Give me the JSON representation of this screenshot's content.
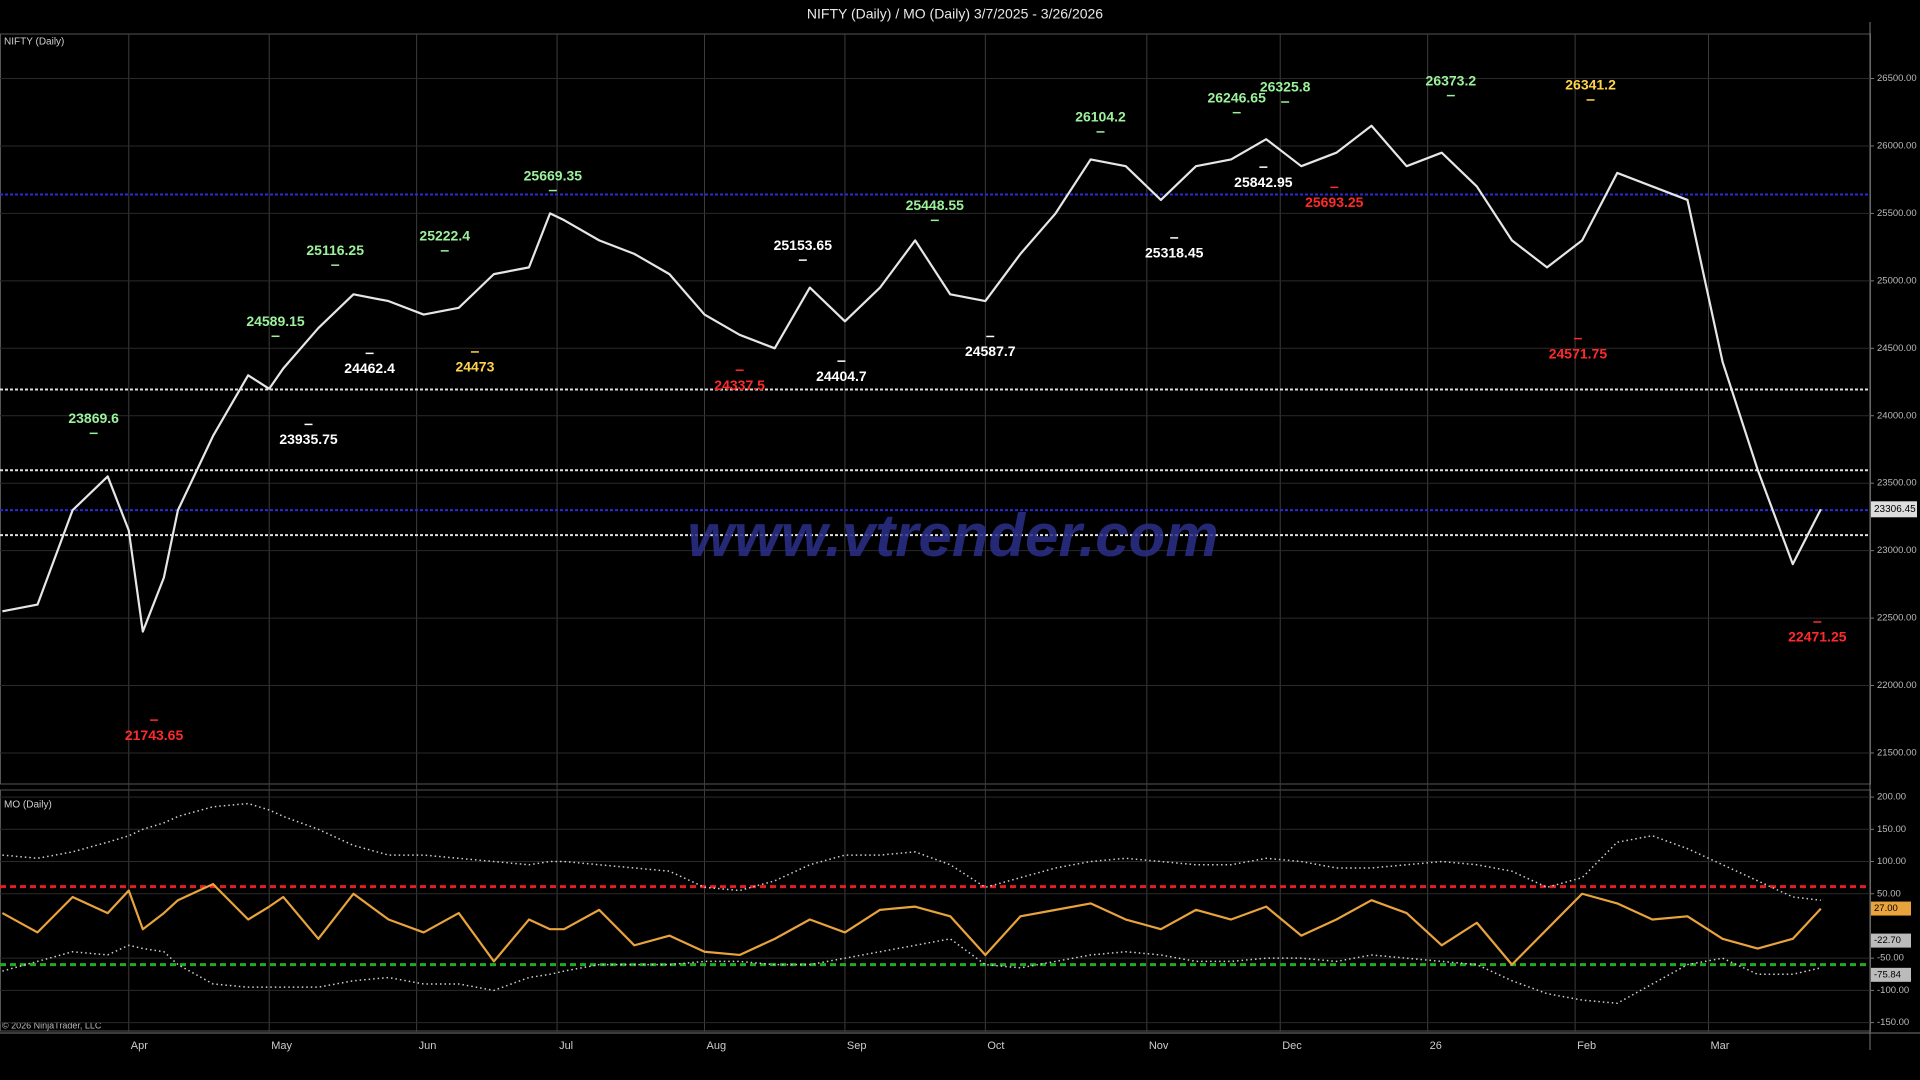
{
  "chart_data": [
    {
      "type": "line",
      "title": "NIFTY (Daily) / MO (Daily)  3/7/2025 - 3/26/2026",
      "watermark": "www.vtrender.com",
      "x": [
        0,
        5,
        10,
        15,
        18,
        20,
        23,
        25,
        30,
        35,
        38,
        40,
        45,
        50,
        55,
        60,
        65,
        70,
        75,
        78,
        80,
        85,
        90,
        95,
        100,
        105,
        110,
        115,
        120,
        125,
        130,
        135,
        140,
        145,
        150,
        155,
        160,
        165,
        170,
        175,
        180,
        185,
        190,
        195,
        200,
        205,
        210,
        215,
        220,
        225,
        230,
        235,
        240,
        245,
        250,
        255,
        259
      ],
      "xlim": [
        0,
        266
      ],
      "xticks": [
        {
          "value": 18,
          "label": "Apr"
        },
        {
          "value": 38,
          "label": "May"
        },
        {
          "value": 59,
          "label": "Jun"
        },
        {
          "value": 79,
          "label": "Jul"
        },
        {
          "value": 100,
          "label": "Aug"
        },
        {
          "value": 120,
          "label": "Sep"
        },
        {
          "value": 140,
          "label": "Oct"
        },
        {
          "value": 163,
          "label": "Nov"
        },
        {
          "value": 182,
          "label": "Dec"
        },
        {
          "value": 203,
          "label": "26"
        },
        {
          "value": 224,
          "label": "Feb"
        },
        {
          "value": 243,
          "label": "Mar"
        }
      ],
      "series": [
        {
          "name": "NIFTY (Daily)",
          "color": "#e6e6e6",
          "values": [
            22550,
            22600,
            23300,
            23550,
            23150,
            22400,
            22800,
            23300,
            23850,
            24300,
            24200,
            24350,
            24650,
            24900,
            24850,
            24750,
            24800,
            25050,
            25100,
            25500,
            25450,
            25300,
            25200,
            25050,
            24750,
            24600,
            24500,
            24950,
            24700,
            24950,
            25300,
            24900,
            24850,
            25200,
            25500,
            25900,
            25850,
            25600,
            25850,
            25900,
            26050,
            25850,
            25950,
            26150,
            25850,
            25950,
            25700,
            25300,
            25100,
            25300,
            25800,
            25700,
            25600,
            24400,
            23600,
            22900,
            23306.45
          ]
        }
      ],
      "ylim": [
        21270,
        26830
      ],
      "yticks": [
        {
          "value": 21500,
          "label": "21500.00"
        },
        {
          "value": 22000,
          "label": "22000.00"
        },
        {
          "value": 22500,
          "label": "22500.00"
        },
        {
          "value": 23000,
          "label": "23000.00"
        },
        {
          "value": 23500,
          "label": "23500.00"
        },
        {
          "value": 24000,
          "label": "24000.00"
        },
        {
          "value": 24500,
          "label": "24500.00"
        },
        {
          "value": 25000,
          "label": "25000.00"
        },
        {
          "value": 25500,
          "label": "25500.00"
        },
        {
          "value": 26000,
          "label": "26000.00"
        },
        {
          "value": 26500,
          "label": "26500.00"
        }
      ],
      "grid": true,
      "last_value": 23306.45,
      "levels": [
        {
          "value": 25640,
          "color": "#2a2ad8"
        },
        {
          "value": 23300,
          "color": "#2a2ad8"
        },
        {
          "value": 24195,
          "color": "#dddddd"
        },
        {
          "value": 23596,
          "color": "#dddddd"
        },
        {
          "value": 23115,
          "color": "#dddddd"
        }
      ],
      "annotations": [
        {
          "value": 23869.6,
          "x": 13,
          "color": "#9cf29c",
          "position": "above"
        },
        {
          "value": 21743.65,
          "x": 21.6,
          "color": "#ff2a2a",
          "position": "below"
        },
        {
          "value": 24589.15,
          "x": 38.9,
          "color": "#9cf29c",
          "position": "above"
        },
        {
          "value": 23935.75,
          "x": 43.6,
          "color": "#ffffff",
          "position": "below"
        },
        {
          "value": 25116.25,
          "x": 47.4,
          "color": "#9cf29c",
          "position": "above"
        },
        {
          "value": 24462.4,
          "x": 52.3,
          "color": "#ffffff",
          "position": "below"
        },
        {
          "value": 25222.4,
          "x": 63,
          "color": "#9cf29c",
          "position": "above"
        },
        {
          "value": 24473,
          "x": 67.3,
          "color": "#ffd54a",
          "position": "below"
        },
        {
          "value": 25669.35,
          "x": 78.4,
          "color": "#9cf29c",
          "position": "above"
        },
        {
          "value": 24337.5,
          "x": 105,
          "color": "#ff2a2a",
          "position": "below"
        },
        {
          "value": 25153.65,
          "x": 114,
          "color": "#ffffff",
          "position": "above"
        },
        {
          "value": 24404.7,
          "x": 119.5,
          "color": "#ffffff",
          "position": "below"
        },
        {
          "value": 25448.55,
          "x": 132.8,
          "color": "#9cf29c",
          "position": "above"
        },
        {
          "value": 24587.7,
          "x": 140.7,
          "color": "#ffffff",
          "position": "below"
        },
        {
          "value": 26104.2,
          "x": 156.4,
          "color": "#9cf29c",
          "position": "above"
        },
        {
          "value": 25318.45,
          "x": 166.9,
          "color": "#ffffff",
          "position": "below"
        },
        {
          "value": 26246.65,
          "x": 175.8,
          "color": "#9cf29c",
          "position": "above"
        },
        {
          "value": 25842.95,
          "x": 179.6,
          "color": "#ffffff",
          "position": "below"
        },
        {
          "value": 26325.8,
          "x": 182.7,
          "color": "#9cf29c",
          "position": "above"
        },
        {
          "value": 25693.25,
          "x": 189.7,
          "color": "#ff2a2a",
          "position": "below"
        },
        {
          "value": 26373.2,
          "x": 206.3,
          "color": "#9cf29c",
          "position": "above"
        },
        {
          "value": 24571.75,
          "x": 224.4,
          "color": "#ff2a2a",
          "position": "below"
        },
        {
          "value": 26341.2,
          "x": 226.2,
          "color": "#ffd54a",
          "position": "above"
        },
        {
          "value": 22471.25,
          "x": 258.5,
          "color": "#ff2a2a",
          "position": "below"
        }
      ]
    },
    {
      "type": "line",
      "footer": "© 2026 NinjaTrader, LLC",
      "x": [
        0,
        5,
        10,
        15,
        18,
        20,
        23,
        25,
        30,
        35,
        38,
        40,
        45,
        50,
        55,
        60,
        65,
        70,
        75,
        78,
        80,
        85,
        90,
        95,
        100,
        105,
        110,
        115,
        120,
        125,
        130,
        135,
        140,
        145,
        150,
        155,
        160,
        165,
        170,
        175,
        180,
        185,
        190,
        195,
        200,
        205,
        210,
        215,
        220,
        225,
        230,
        235,
        240,
        245,
        250,
        255,
        259
      ],
      "xlim": [
        0,
        266
      ],
      "series": [
        {
          "name": "MO (Daily)",
          "color": "#e8a33c",
          "style": "solid",
          "values": [
            20,
            -10,
            45,
            20,
            55,
            -5,
            20,
            40,
            65,
            10,
            30,
            45,
            -20,
            50,
            10,
            -10,
            20,
            -55,
            10,
            -5,
            -5,
            25,
            -30,
            -15,
            -40,
            -45,
            -20,
            10,
            -10,
            25,
            30,
            15,
            -45,
            15,
            25,
            35,
            10,
            -5,
            25,
            10,
            30,
            -15,
            10,
            40,
            20,
            -30,
            5,
            -60,
            -5,
            50,
            35,
            10,
            15,
            -20,
            -35,
            -20,
            27
          ]
        },
        {
          "color": "#cfcfcf",
          "style": "dotted",
          "values": [
            110,
            105,
            115,
            130,
            140,
            150,
            160,
            170,
            185,
            190,
            180,
            170,
            150,
            125,
            110,
            110,
            105,
            100,
            95,
            100,
            100,
            95,
            90,
            85,
            60,
            55,
            70,
            95,
            110,
            110,
            115,
            95,
            60,
            75,
            90,
            100,
            105,
            100,
            95,
            95,
            105,
            100,
            90,
            90,
            95,
            100,
            95,
            85,
            60,
            75,
            130,
            140,
            120,
            95,
            70,
            45,
            40
          ]
        },
        {
          "color": "#cfcfcf",
          "style": "dotted",
          "values": [
            -70,
            -55,
            -40,
            -45,
            -30,
            -35,
            -40,
            -60,
            -90,
            -95,
            -95,
            -95,
            -95,
            -85,
            -80,
            -90,
            -90,
            -100,
            -80,
            -75,
            -70,
            -60,
            -60,
            -60,
            -55,
            -55,
            -60,
            -60,
            -50,
            -40,
            -30,
            -20,
            -60,
            -65,
            -55,
            -45,
            -40,
            -45,
            -55,
            -55,
            -50,
            -50,
            -55,
            -45,
            -50,
            -55,
            -60,
            -85,
            -105,
            -115,
            -120,
            -90,
            -60,
            -50,
            -75,
            -75,
            -65
          ]
        }
      ],
      "ylim": [
        -163,
        211
      ],
      "yticks": [
        {
          "value": 200,
          "label": "200.00"
        },
        {
          "value": 150,
          "label": "150.00"
        },
        {
          "value": 100,
          "label": "100.00"
        },
        {
          "value": 50,
          "label": "50.00"
        },
        {
          "value": -50,
          "label": "-50.00"
        },
        {
          "value": -100,
          "label": "-100.00"
        },
        {
          "value": -150,
          "label": "-150.00"
        }
      ],
      "grid": true,
      "thresholds": [
        {
          "value": 61,
          "color": "#e02020"
        },
        {
          "value": -60,
          "color": "#22aa22"
        }
      ],
      "value_tags": [
        {
          "value": 27,
          "label": "27.00",
          "color": "#e8a33c"
        },
        {
          "value": -22.7,
          "label": "-22.70",
          "color": "#bbbbbb"
        },
        {
          "value": -75.84,
          "label": "-75.84",
          "color": "#bbbbbb"
        }
      ]
    }
  ]
}
